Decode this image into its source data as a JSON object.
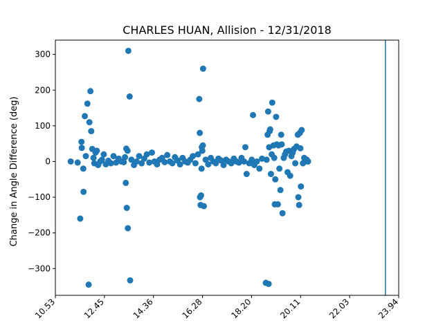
{
  "chart_data": {
    "type": "scatter",
    "title": "CHARLES HUAN, Allision - 12/31/2018",
    "xlabel": "",
    "ylabel": "Change in Angle Difference (deg)",
    "x_ticks": [
      "10.53",
      "12.45",
      "14.36",
      "16.28",
      "18.20",
      "20.11",
      "22.03",
      "23.94"
    ],
    "y_ticks": [
      "300",
      "200",
      "100",
      "0",
      "−100",
      "−200",
      "−300"
    ],
    "xlim": [
      10.53,
      23.94
    ],
    "ylim": [
      -375,
      340
    ],
    "grid": false,
    "vline_x": 23.42,
    "color": "#1f77b4",
    "points": [
      [
        11.13,
        0
      ],
      [
        11.4,
        -3
      ],
      [
        11.5,
        -160
      ],
      [
        11.55,
        55
      ],
      [
        11.56,
        38
      ],
      [
        11.62,
        -20
      ],
      [
        11.63,
        -85
      ],
      [
        11.68,
        127
      ],
      [
        11.72,
        15
      ],
      [
        11.78,
        162
      ],
      [
        11.83,
        -345
      ],
      [
        11.86,
        110
      ],
      [
        11.9,
        197
      ],
      [
        11.93,
        85
      ],
      [
        11.97,
        35
      ],
      [
        12.02,
        10
      ],
      [
        12.05,
        -5
      ],
      [
        12.1,
        25
      ],
      [
        12.15,
        30
      ],
      [
        12.2,
        -10
      ],
      [
        12.28,
        0
      ],
      [
        12.35,
        5
      ],
      [
        12.42,
        20
      ],
      [
        12.5,
        -8
      ],
      [
        12.6,
        2
      ],
      [
        12.7,
        -5
      ],
      [
        12.8,
        15
      ],
      [
        12.9,
        -3
      ],
      [
        13.0,
        8
      ],
      [
        13.1,
        0
      ],
      [
        13.2,
        -2
      ],
      [
        13.25,
        12
      ],
      [
        13.28,
        -60
      ],
      [
        13.3,
        36
      ],
      [
        13.32,
        -130
      ],
      [
        13.35,
        30
      ],
      [
        13.36,
        -187
      ],
      [
        13.38,
        310
      ],
      [
        13.43,
        182
      ],
      [
        13.45,
        -333
      ],
      [
        13.5,
        5
      ],
      [
        13.6,
        -10
      ],
      [
        13.7,
        0
      ],
      [
        13.8,
        15
      ],
      [
        13.9,
        -5
      ],
      [
        14.0,
        8
      ],
      [
        14.1,
        20
      ],
      [
        14.2,
        -3
      ],
      [
        14.3,
        25
      ],
      [
        14.4,
        0
      ],
      [
        14.5,
        -8
      ],
      [
        14.6,
        5
      ],
      [
        14.7,
        10
      ],
      [
        14.8,
        -2
      ],
      [
        14.9,
        18
      ],
      [
        15.0,
        0
      ],
      [
        15.1,
        -5
      ],
      [
        15.2,
        12
      ],
      [
        15.3,
        3
      ],
      [
        15.4,
        -8
      ],
      [
        15.5,
        10
      ],
      [
        15.6,
        0
      ],
      [
        15.7,
        -3
      ],
      [
        15.8,
        5
      ],
      [
        15.9,
        15
      ],
      [
        16.0,
        -5
      ],
      [
        16.1,
        20
      ],
      [
        16.15,
        175
      ],
      [
        16.17,
        80
      ],
      [
        16.18,
        -100
      ],
      [
        16.2,
        -122
      ],
      [
        16.22,
        -95
      ],
      [
        16.24,
        -20
      ],
      [
        16.25,
        40
      ],
      [
        16.27,
        30
      ],
      [
        16.29,
        45
      ],
      [
        16.3,
        260
      ],
      [
        16.33,
        -125
      ],
      [
        16.4,
        5
      ],
      [
        16.5,
        -8
      ],
      [
        16.6,
        10
      ],
      [
        16.7,
        0
      ],
      [
        16.8,
        -5
      ],
      [
        16.9,
        8
      ],
      [
        17.0,
        3
      ],
      [
        17.1,
        -10
      ],
      [
        17.2,
        5
      ],
      [
        17.3,
        0
      ],
      [
        17.4,
        -5
      ],
      [
        17.5,
        8
      ],
      [
        17.6,
        0
      ],
      [
        17.7,
        -3
      ],
      [
        17.8,
        10
      ],
      [
        17.9,
        0
      ],
      [
        17.95,
        40
      ],
      [
        18.0,
        -35
      ],
      [
        18.1,
        -5
      ],
      [
        18.2,
        5
      ],
      [
        18.25,
        130
      ],
      [
        18.3,
        -10
      ],
      [
        18.4,
        0
      ],
      [
        18.5,
        -20
      ],
      [
        18.6,
        8
      ],
      [
        18.75,
        -340
      ],
      [
        18.78,
        5
      ],
      [
        18.82,
        75
      ],
      [
        18.84,
        140
      ],
      [
        18.86,
        -343
      ],
      [
        18.88,
        40
      ],
      [
        18.9,
        85
      ],
      [
        18.92,
        90
      ],
      [
        18.95,
        -35
      ],
      [
        18.98,
        20
      ],
      [
        19.0,
        165
      ],
      [
        19.05,
        45
      ],
      [
        19.08,
        10
      ],
      [
        19.1,
        -120
      ],
      [
        19.12,
        -50
      ],
      [
        19.15,
        125
      ],
      [
        19.18,
        48
      ],
      [
        19.22,
        -120
      ],
      [
        19.25,
        45
      ],
      [
        19.28,
        -20
      ],
      [
        19.32,
        -80
      ],
      [
        19.35,
        75
      ],
      [
        19.37,
        48
      ],
      [
        19.4,
        -145
      ],
      [
        19.45,
        10
      ],
      [
        19.5,
        20
      ],
      [
        19.55,
        28
      ],
      [
        19.6,
        -30
      ],
      [
        19.65,
        30
      ],
      [
        19.7,
        -40
      ],
      [
        19.75,
        15
      ],
      [
        19.8,
        25
      ],
      [
        19.85,
        35
      ],
      [
        19.9,
        -5
      ],
      [
        19.95,
        42
      ],
      [
        20.0,
        75
      ],
      [
        20.02,
        -100
      ],
      [
        20.05,
        -122
      ],
      [
        20.08,
        80
      ],
      [
        20.1,
        37
      ],
      [
        20.12,
        -70
      ],
      [
        20.15,
        88
      ],
      [
        20.2,
        -5
      ],
      [
        20.25,
        10
      ],
      [
        20.3,
        0
      ],
      [
        20.35,
        5
      ],
      [
        20.4,
        0
      ]
    ]
  }
}
